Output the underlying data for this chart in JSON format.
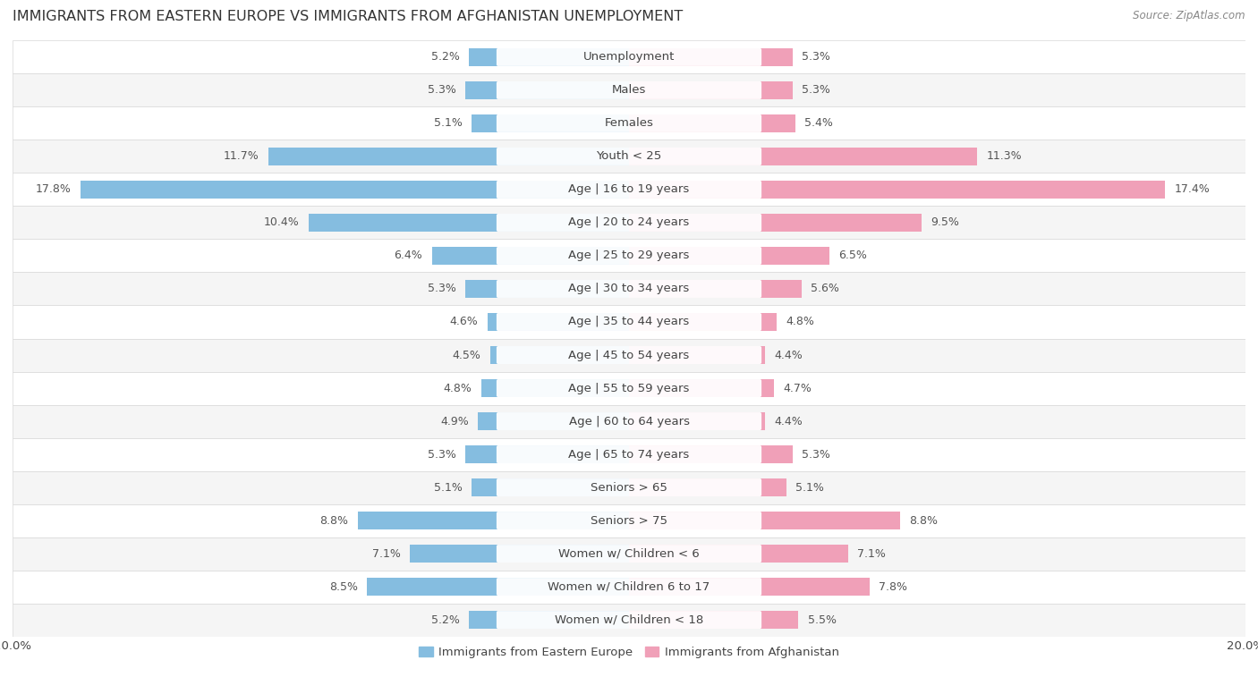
{
  "title": "IMMIGRANTS FROM EASTERN EUROPE VS IMMIGRANTS FROM AFGHANISTAN UNEMPLOYMENT",
  "source": "Source: ZipAtlas.com",
  "categories": [
    "Unemployment",
    "Males",
    "Females",
    "Youth < 25",
    "Age | 16 to 19 years",
    "Age | 20 to 24 years",
    "Age | 25 to 29 years",
    "Age | 30 to 34 years",
    "Age | 35 to 44 years",
    "Age | 45 to 54 years",
    "Age | 55 to 59 years",
    "Age | 60 to 64 years",
    "Age | 65 to 74 years",
    "Seniors > 65",
    "Seniors > 75",
    "Women w/ Children < 6",
    "Women w/ Children 6 to 17",
    "Women w/ Children < 18"
  ],
  "left_values": [
    5.2,
    5.3,
    5.1,
    11.7,
    17.8,
    10.4,
    6.4,
    5.3,
    4.6,
    4.5,
    4.8,
    4.9,
    5.3,
    5.1,
    8.8,
    7.1,
    8.5,
    5.2
  ],
  "right_values": [
    5.3,
    5.3,
    5.4,
    11.3,
    17.4,
    9.5,
    6.5,
    5.6,
    4.8,
    4.4,
    4.7,
    4.4,
    5.3,
    5.1,
    8.8,
    7.1,
    7.8,
    5.5
  ],
  "left_color": "#85bde0",
  "right_color": "#f0a0b8",
  "left_label": "Immigrants from Eastern Europe",
  "right_label": "Immigrants from Afghanistan",
  "axis_max": 20.0,
  "bg_color": "#ffffff",
  "row_color_even": "#f5f5f5",
  "row_color_odd": "#ffffff",
  "row_border_color": "#d8d8d8",
  "title_fontsize": 11.5,
  "label_fontsize": 9.5,
  "value_fontsize": 9.0,
  "source_fontsize": 8.5
}
